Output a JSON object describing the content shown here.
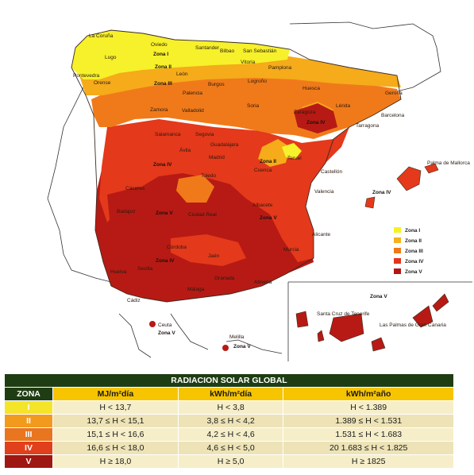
{
  "map": {
    "cities": [
      "La Coruña",
      "Oviedo",
      "Santander",
      "Bilbao",
      "San Sebastián",
      "Lugo",
      "Vitoria",
      "Pamplona",
      "León",
      "Pontevedra",
      "Orense",
      "Burgos",
      "Logroño",
      "Palencia",
      "Huesca",
      "Gerona",
      "Zamora",
      "Valladolid",
      "Soria",
      "Lérida",
      "Zaragoza",
      "Barcelona",
      "Tarragona",
      "Salamanca",
      "Segovia",
      "Guadalajara",
      "Ávila",
      "Madrid",
      "Teruel",
      "Toledo",
      "Cuenca",
      "Castellón",
      "Cáceres",
      "Palma de Mallorca",
      "Valencia",
      "Badajoz",
      "Ciudad Real",
      "Albacete",
      "Alicante",
      "Córdoba",
      "Murcia",
      "Jaén",
      "Huelva",
      "Sevilla",
      "Granada",
      "Almería",
      "Cádiz",
      "Málaga",
      "Ceuta",
      "Melilla",
      "Santa Cruz de Tenerife",
      "Las Palmas de Gran Canaria"
    ],
    "zone_labels": [
      "Zona I",
      "Zona II",
      "Zona III",
      "Zona IV",
      "Zona V"
    ],
    "legend": [
      {
        "label": "Zona I",
        "color": "#f5f224"
      },
      {
        "label": "Zona II",
        "color": "#f6b21a"
      },
      {
        "label": "Zona III",
        "color": "#ee7a17"
      },
      {
        "label": "Zona IV",
        "color": "#e5341c"
      },
      {
        "label": "Zona V",
        "color": "#b41414"
      }
    ]
  },
  "table": {
    "title": "RADIACION SOLAR GLOBAL",
    "headers": [
      "ZONA",
      "MJ/m²día",
      "kWh/m²día",
      "kWh/m²año"
    ],
    "rows": [
      {
        "zona": "I",
        "color": "#f5e52a",
        "mj": "H < 13,7",
        "kwh_dia": "H < 3,8",
        "kwh_ano": "H < 1.389"
      },
      {
        "zona": "II",
        "color": "#f29a1d",
        "mj": "13,7 ≤ H < 15,1",
        "kwh_dia": "3,8 ≤ H < 4,2",
        "kwh_ano": "1.389 ≤ H < 1.531"
      },
      {
        "zona": "III",
        "color": "#e9751f",
        "mj": "15,1 ≤ H < 16,6",
        "kwh_dia": "4,2 ≤ H < 4,6",
        "kwh_ano": "1.531 ≤ H < 1.683"
      },
      {
        "zona": "IV",
        "color": "#e1401c",
        "mj": "16,6 ≤ H < 18,0",
        "kwh_dia": "4,6 ≤ H < 5,0",
        "kwh_ano": "20 1.683 ≤ H < 1.825"
      },
      {
        "zona": "V",
        "color": "#9e1712",
        "mj": "H ≥ 18,0",
        "kwh_dia": "H ≥ 5,0",
        "kwh_ano": "H ≥ 1825"
      }
    ]
  }
}
